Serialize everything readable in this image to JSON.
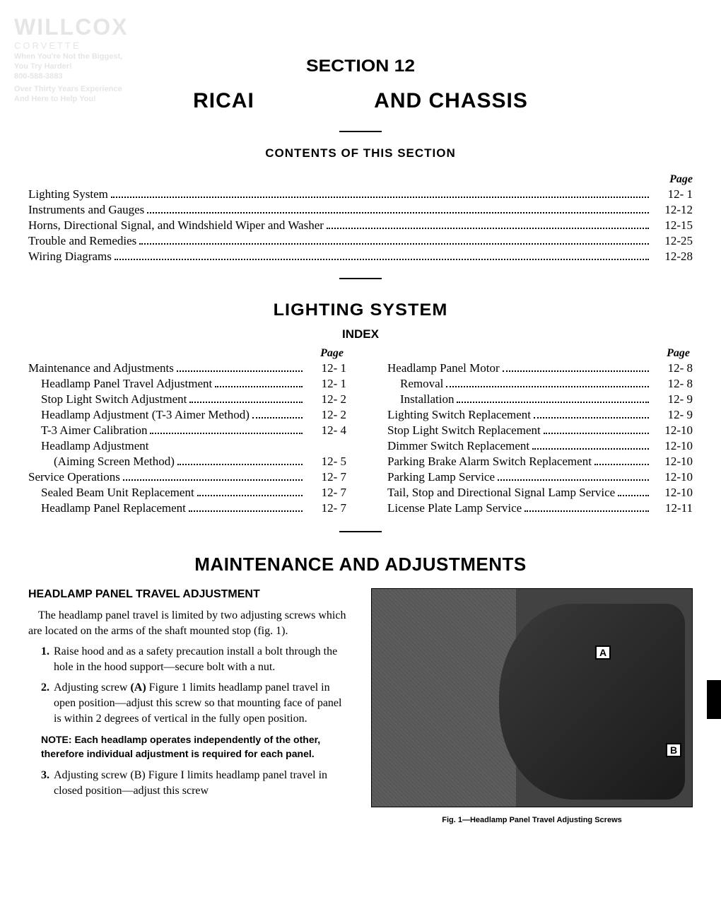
{
  "watermark": {
    "logo": "WILLCOX",
    "sub": "CORVETTE",
    "line1": "When You're Not the Biggest,",
    "line2": "You Try Harder!",
    "line3": "800-588-3883",
    "line4": "Over Thirty Years Experience",
    "line5": "And Here to Help You!"
  },
  "header": {
    "section": "SECTION 12",
    "title_left": "RICAI",
    "title_right": "AND  CHASSIS"
  },
  "contents": {
    "heading": "CONTENTS OF THIS SECTION",
    "page_label": "Page",
    "items": [
      {
        "label": "Lighting System",
        "page": "12-  1"
      },
      {
        "label": "Instruments and Gauges",
        "page": "12-12"
      },
      {
        "label": "Horns, Directional Signal, and Windshield Wiper and Washer",
        "page": "12-15"
      },
      {
        "label": "Trouble and Remedies",
        "page": "12-25"
      },
      {
        "label": "Wiring Diagrams",
        "page": "12-28"
      }
    ]
  },
  "lighting": {
    "title": "LIGHTING SYSTEM",
    "index": "INDEX",
    "page_label_l": "Page",
    "page_label_r": "Page",
    "left": [
      {
        "label": "Maintenance and Adjustments",
        "page": "12-  1",
        "indent": 0
      },
      {
        "label": "Headlamp Panel Travel Adjustment",
        "page": "12-  1",
        "indent": 1
      },
      {
        "label": "Stop Light Switch Adjustment",
        "page": "12-  2",
        "indent": 1
      },
      {
        "label": "Headlamp Adjustment (T-3 Aimer Method)",
        "page": "12-  2",
        "indent": 1
      },
      {
        "label": "T-3 Aimer Calibration",
        "page": "12-  4",
        "indent": 1
      },
      {
        "label": "Headlamp Adjustment",
        "page": "",
        "indent": 1,
        "nodots": true
      },
      {
        "label": "(Aiming Screen Method)",
        "page": "12-  5",
        "indent": 2
      },
      {
        "label": "Service Operations",
        "page": "12-  7",
        "indent": 0
      },
      {
        "label": "Sealed Beam Unit Replacement",
        "page": "12-  7",
        "indent": 1
      },
      {
        "label": "Headlamp Panel Replacement",
        "page": "12-  7",
        "indent": 1
      }
    ],
    "right": [
      {
        "label": "Headlamp Panel Motor",
        "page": "12-  8",
        "indent": 1
      },
      {
        "label": "Removal",
        "page": "12-  8",
        "indent": 2
      },
      {
        "label": "Installation",
        "page": "12-  9",
        "indent": 2
      },
      {
        "label": "Lighting Switch Replacement",
        "page": "12-  9",
        "indent": 1
      },
      {
        "label": "Stop Light Switch Replacement",
        "page": "12-10",
        "indent": 1
      },
      {
        "label": "Dimmer Switch Replacement",
        "page": "12-10",
        "indent": 1
      },
      {
        "label": "Parking Brake Alarm Switch Replacement",
        "page": "12-10",
        "indent": 1
      },
      {
        "label": "Parking Lamp Service",
        "page": "12-10",
        "indent": 1
      },
      {
        "label": "Tail, Stop and Directional Signal Lamp Service",
        "page": "12-10",
        "indent": 1
      },
      {
        "label": "License Plate Lamp Service",
        "page": "12-11",
        "indent": 1
      }
    ]
  },
  "maint": {
    "title": "MAINTENANCE AND ADJUSTMENTS",
    "subsection": "HEADLAMP PANEL TRAVEL ADJUSTMENT",
    "para": "The headlamp panel travel is limited by two adjusting screws which are located on the arms of the shaft mounted stop (fig. 1).",
    "step1_num": "1.",
    "step1": "Raise hood and as a safety precaution install a bolt through the hole in the hood support—secure bolt with a nut.",
    "step2_num": "2.",
    "step2_pre": "Adjusting screw ",
    "step2_bold": "(A)",
    "step2_post": " Figure 1 limits headlamp panel travel in open position—adjust this screw so that mounting face of panel is within 2 degrees of vertical in the fully open position.",
    "note": "NOTE: Each headlamp operates independently of the other, therefore individual adjustment is required for each panel.",
    "step3_num": "3.",
    "step3": "Adjusting screw (B) Figure I limits headlamp panel travel in closed position—adjust this screw",
    "marker_a": "A",
    "marker_b": "B",
    "caption": "Fig. 1—Headlamp Panel Travel Adjusting Screws"
  }
}
